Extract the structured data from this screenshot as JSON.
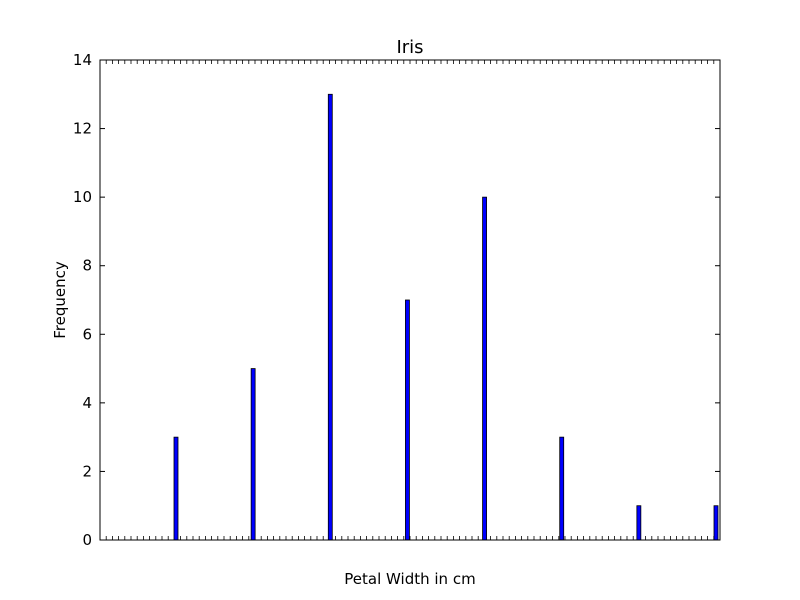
{
  "chart_data": {
    "type": "bar",
    "title": "Iris",
    "xlabel": "Petal Width in cm",
    "ylabel": "Frequency",
    "ylim": [
      0,
      14
    ],
    "yticks": [
      0,
      2,
      4,
      6,
      8,
      10,
      12,
      14
    ],
    "series": [
      {
        "color": "#0000ff",
        "bars": [
          {
            "value": 3
          },
          {
            "value": 5
          },
          {
            "value": 13
          },
          {
            "value": 7
          },
          {
            "value": 10
          },
          {
            "value": 3
          },
          {
            "value": 1
          },
          {
            "value": 1
          }
        ]
      }
    ],
    "grid": false,
    "legend": "none"
  }
}
